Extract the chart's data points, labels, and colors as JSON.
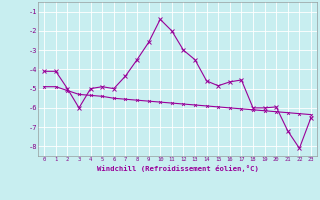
{
  "xlabel": "Windchill (Refroidissement éolien,°C)",
  "x": [
    0,
    1,
    2,
    3,
    4,
    5,
    6,
    7,
    8,
    9,
    10,
    11,
    12,
    13,
    14,
    15,
    16,
    17,
    18,
    19,
    20,
    21,
    22,
    23
  ],
  "line1": [
    -4.1,
    -4.1,
    -5.0,
    -6.0,
    -5.0,
    -4.9,
    -5.0,
    -4.35,
    -3.5,
    -2.6,
    -1.4,
    -2.0,
    -3.0,
    -3.5,
    -4.6,
    -4.85,
    -4.65,
    -4.55,
    -6.0,
    -6.0,
    -5.95,
    -7.2,
    -8.1,
    -6.5
  ],
  "line2": [
    -4.9,
    -4.9,
    -5.1,
    -5.3,
    -5.35,
    -5.4,
    -5.5,
    -5.55,
    -5.6,
    -5.65,
    -5.7,
    -5.75,
    -5.8,
    -5.85,
    -5.9,
    -5.95,
    -6.0,
    -6.05,
    -6.1,
    -6.15,
    -6.2,
    -6.25,
    -6.3,
    -6.35
  ],
  "line_color": "#990099",
  "bg_color": "#c8eef0",
  "grid_color": "#ffffff",
  "tick_color": "#880088",
  "ylim": [
    -8.5,
    -0.5
  ],
  "xlim": [
    -0.5,
    23.5
  ],
  "yticks": [
    -8,
    -7,
    -6,
    -5,
    -4,
    -3,
    -2,
    -1
  ],
  "xticks": [
    0,
    1,
    2,
    3,
    4,
    5,
    6,
    7,
    8,
    9,
    10,
    11,
    12,
    13,
    14,
    15,
    16,
    17,
    18,
    19,
    20,
    21,
    22,
    23
  ]
}
